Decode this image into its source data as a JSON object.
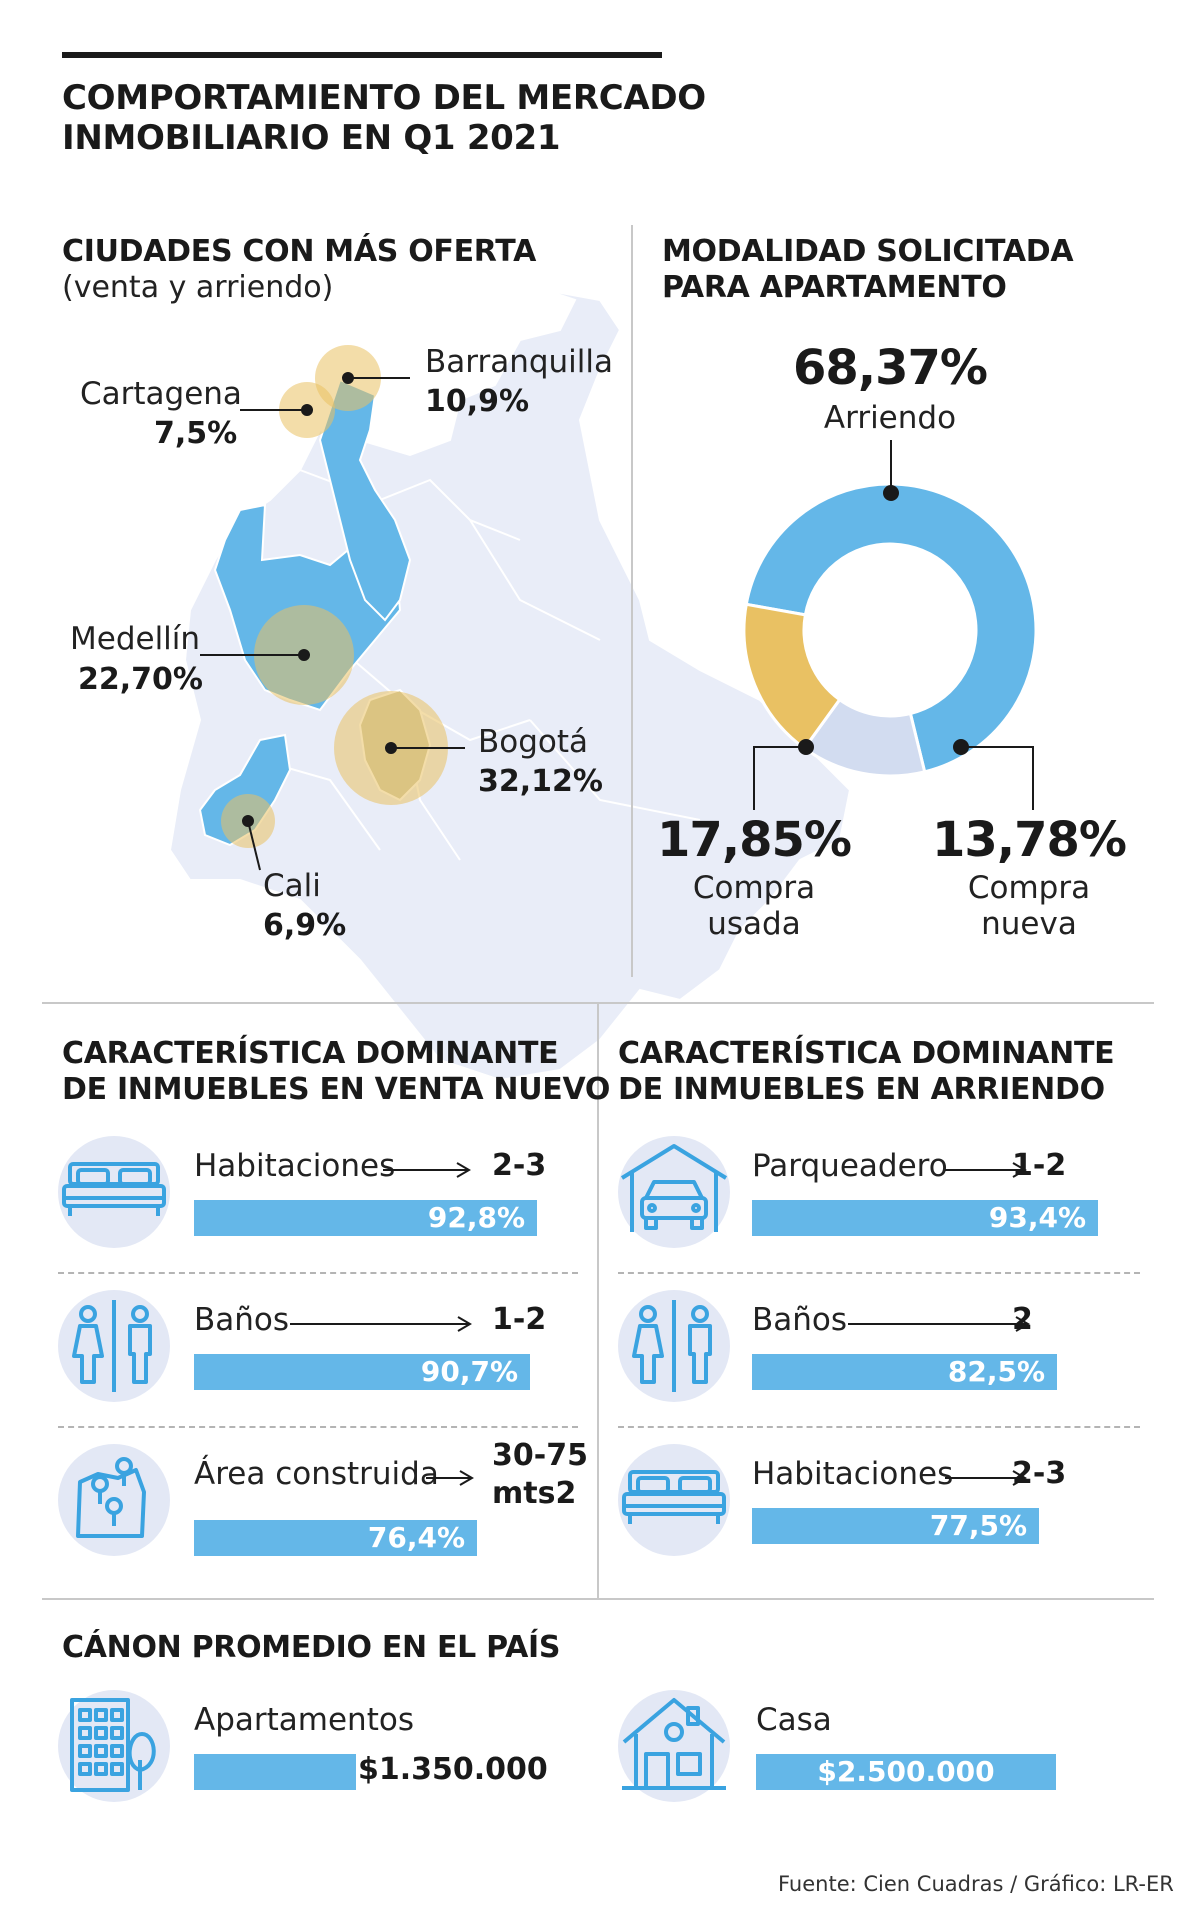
{
  "header": {
    "title_line1": "COMPORTAMIENTO DEL MERCADO",
    "title_line2": "INMOBILIARIO EN Q1 2021"
  },
  "cities": {
    "title": "CIUDADES CON MÁS OFERTA",
    "subtitle": "(venta y arriendo)",
    "items": [
      {
        "name": "Barranquilla",
        "value": "10,9%"
      },
      {
        "name": "Cartagena",
        "value": "7,5%"
      },
      {
        "name": "Medellín",
        "value": "22,70%"
      },
      {
        "name": "Bogotá",
        "value": "32,12%"
      },
      {
        "name": "Cali",
        "value": "6,9%"
      }
    ]
  },
  "modalidad": {
    "title_line1": "MODALIDAD SOLICITADA",
    "title_line2": "PARA APARTAMENTO",
    "arriendo": {
      "value": "68,37%",
      "label": "Arriendo"
    },
    "usada": {
      "value": "17,85%",
      "label1": "Compra",
      "label2": "usada"
    },
    "nueva": {
      "value": "13,78%",
      "label1": "Compra",
      "label2": "nueva"
    }
  },
  "venta": {
    "title_line1": "CARACTERÍSTICA DOMINANTE",
    "title_line2": "DE INMUEBLES EN VENTA NUEVO",
    "items": [
      {
        "label": "Habitaciones",
        "value": "2-3",
        "pct": "92,8%"
      },
      {
        "label": "Baños",
        "value": "1-2",
        "pct": "90,7%"
      },
      {
        "label": "Área construida",
        "value_line1": "30-75",
        "value_line2": "mts2",
        "pct": "76,4%"
      }
    ]
  },
  "arriendo": {
    "title_line1": "CARACTERÍSTICA DOMINANTE",
    "title_line2": "DE INMUEBLES EN ARRIENDO",
    "items": [
      {
        "label": "Parqueadero",
        "value": "1-2",
        "pct": "93,4%"
      },
      {
        "label": "Baños",
        "value": "2",
        "pct": "82,5%"
      },
      {
        "label": "Habitaciones",
        "value": "2-3",
        "pct": "77,5%"
      }
    ]
  },
  "canon": {
    "title": "CÁNON PROMEDIO EN EL PAÍS",
    "apartamentos": {
      "label": "Apartamentos",
      "value": "$1.350.000"
    },
    "casa": {
      "label": "Casa",
      "value": "$2.500.000"
    }
  },
  "footer": {
    "source": "Fuente: Cien Cuadras / Gráfico: LR-ER"
  },
  "chart_data": [
    {
      "type": "pie",
      "title": "MODALIDAD SOLICITADA PARA APARTAMENTO",
      "categories": [
        "Arriendo",
        "Compra usada",
        "Compra nueva"
      ],
      "values": [
        68.37,
        17.85,
        13.78
      ],
      "colors": [
        "#64b7e8",
        "#e9c163",
        "#d2dcf0"
      ]
    },
    {
      "type": "bar",
      "title": "CARACTERÍSTICA DOMINANTE DE INMUEBLES EN VENTA NUEVO",
      "categories": [
        "Habitaciones",
        "Baños",
        "Área construida"
      ],
      "values": [
        92.8,
        90.7,
        76.4
      ]
    },
    {
      "type": "bar",
      "title": "CARACTERÍSTICA DOMINANTE DE INMUEBLES EN ARRIENDO",
      "categories": [
        "Parqueadero",
        "Baños",
        "Habitaciones"
      ],
      "values": [
        93.4,
        82.5,
        77.5
      ]
    },
    {
      "type": "bar",
      "title": "CÁNON PROMEDIO EN EL PAÍS",
      "categories": [
        "Apartamentos",
        "Casa"
      ],
      "values": [
        1350000,
        2500000
      ]
    }
  ]
}
